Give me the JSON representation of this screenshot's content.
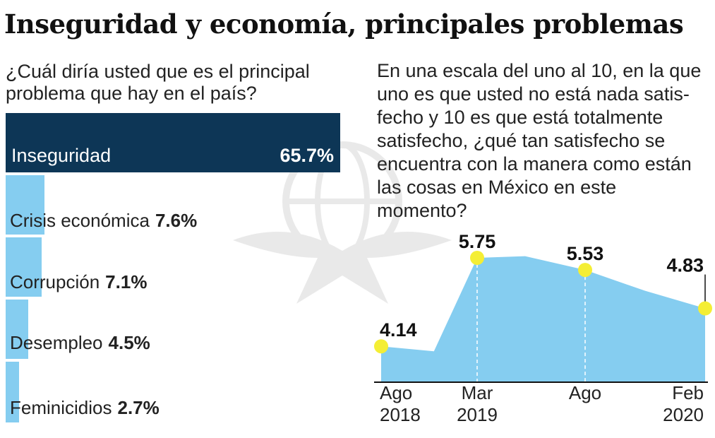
{
  "title": "Inseguridad y economía, principales problemas",
  "question_left": "¿Cuál diría usted que es el principal problema que hay en el país?",
  "question_right": "En una escala del uno al 10, en la que uno es que usted no está nada satis- fecho y 10 es que está totalmente satisfecho, ¿qué tan satisfecho se encuentra con la manera como están las cosas en México en este momento?",
  "chart_data": [
    {
      "type": "bar",
      "orientation": "horizontal",
      "categories": [
        "Inseguridad",
        "Crisis económica",
        "Corrupción",
        "Desempleo",
        "Feminicidios"
      ],
      "values": [
        65.7,
        7.6,
        7.1,
        4.5,
        2.7
      ],
      "value_labels": [
        "65.7%",
        "7.6%",
        "7.1%",
        "4.5%",
        "2.7%"
      ],
      "unit": "%"
    },
    {
      "type": "area",
      "x_labels": [
        [
          "Ago",
          "2018"
        ],
        [
          "Mar",
          "2019"
        ],
        [
          "Ago",
          ""
        ],
        [
          "Feb",
          "2020"
        ]
      ],
      "points": [
        {
          "t": 0,
          "value": 4.14,
          "label": "4.14",
          "highlight": true
        },
        {
          "t": 2.2,
          "value": 4.05,
          "label": "",
          "highlight": false
        },
        {
          "t": 4.0,
          "value": 5.75,
          "label": "5.75",
          "highlight": true
        },
        {
          "t": 6.0,
          "value": 5.78,
          "label": "",
          "highlight": false
        },
        {
          "t": 8.5,
          "value": 5.53,
          "label": "5.53",
          "highlight": true
        },
        {
          "t": 11.0,
          "value": 5.15,
          "label": "",
          "highlight": false
        },
        {
          "t": 13.5,
          "value": 4.83,
          "label": "4.83",
          "highlight": true
        }
      ],
      "x_ticks_t": [
        0,
        4.0,
        8.5,
        13.5
      ],
      "ylim": [
        3.5,
        6.2
      ]
    }
  ],
  "colors": {
    "dark_bar": "#0d3656",
    "light_bar": "#85cdf0",
    "area": "#85cdf0",
    "marker": "#f4ee35"
  }
}
